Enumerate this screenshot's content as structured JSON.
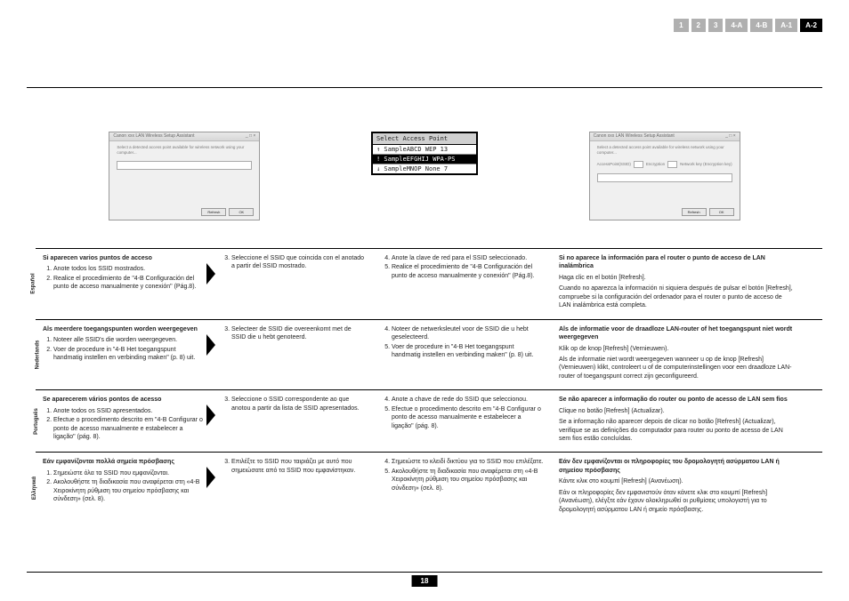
{
  "tabs": [
    "1",
    "2",
    "3",
    "4-A",
    "4-B",
    "A-1",
    "A-2"
  ],
  "activeTab": 6,
  "pageNumber": "18",
  "dialog1": {
    "title": "Canon xxx LAN Wireless Setup Assistant",
    "text": "Select a detected access point available for wireless network using your computer...",
    "btn1": "Refresh",
    "btn2": "OK"
  },
  "apList": {
    "title": "Select Access Point",
    "rows": [
      {
        "sel": false,
        "txt": "↑  SampleABCD WEP 13"
      },
      {
        "sel": true,
        "txt": "!  SampleEFGHIJ WPA-PS"
      },
      {
        "sel": false,
        "txt": "↓  SampleMNOP None 7"
      }
    ]
  },
  "dialog2": {
    "title": "Canon xxx LAN Wireless Setup Assistant",
    "lbl1": "AccessPoint(SSID)",
    "lbl2": "Encryption",
    "lbl3": "Network key (Encryption key)",
    "btn1": "Refresh",
    "btn2": "OK"
  },
  "rows": [
    {
      "lang": "Español",
      "col1": {
        "h": "Si aparecen varios puntos de acceso",
        "items": [
          "Anote todos los SSID mostrados.",
          "Realice el procedimiento de \"4-B Configuración del punto de acceso manualmente y conexión\" (Pág.8)."
        ]
      },
      "col2": {
        "start": 3,
        "items": [
          "Seleccione el SSID que coincida con el anotado a partir del SSID mostrado."
        ]
      },
      "col3": {
        "start": 4,
        "items": [
          "Anote la clave de red para el SSID seleccionado.",
          "Realice el procedimiento de \"4-B Configuración del punto de acceso manualmente y conexión\" (Pág.8)."
        ]
      },
      "col4": {
        "h": "Si no aparece la información para el router o punto de acceso de LAN inalámbrica",
        "p1": "Haga clic en el botón [Refresh].",
        "p2": "Cuando no aparezca la información ni siquiera después de pulsar el botón [Refresh], compruebe si la configuración del ordenador para el router o punto de acceso de LAN inalámbrica está completa."
      }
    },
    {
      "lang": "Nederlands",
      "col1": {
        "h": "Als meerdere toegangspunten worden weergegeven",
        "items": [
          "Noteer alle SSID's die worden weergegeven.",
          "Voer de procedure in \"4-B Het toegangspunt handmatig instellen en verbinding maken\" (p. 8) uit."
        ]
      },
      "col2": {
        "start": 3,
        "items": [
          "Selecteer de SSID die overeenkomt met de SSID die u hebt genoteerd."
        ]
      },
      "col3": {
        "start": 4,
        "items": [
          "Noteer de netwerksleutel voor de SSID die u hebt geselecteerd.",
          "Voer de procedure in \"4-B Het toegangspunt handmatig instellen en verbinding maken\" (p. 8) uit."
        ]
      },
      "col4": {
        "h": "Als de informatie voor de draadloze LAN-router of het toegangspunt niet wordt weergegeven",
        "p1": "Klik op de knop [Refresh] (Vernieuwen).",
        "p2": "Als de informatie niet wordt weergegeven wanneer u op de knop [Refresh] (Vernieuwen) klikt, controleert u of de computerinstellingen voor een draadloze LAN-router of toegangspunt correct zijn geconfigureerd."
      }
    },
    {
      "lang": "Português",
      "col1": {
        "h": "Se aparecerem vários pontos de acesso",
        "items": [
          "Anote todos os SSID apresentados.",
          "Efectue o procedimento descrito em \"4-B Configurar o ponto de acesso manualmente e estabelecer a ligação\" (pág. 8)."
        ]
      },
      "col2": {
        "start": 3,
        "items": [
          "Seleccione o SSID correspondente ao que anotou a partir da lista de SSID apresentados."
        ]
      },
      "col3": {
        "start": 4,
        "items": [
          "Anote a chave de rede do SSID que seleccionou.",
          "Efectue o procedimento descrito em \"4-B Configurar o ponto de acesso manualmente e estabelecer a ligação\" (pág. 8)."
        ]
      },
      "col4": {
        "h": "Se não aparecer a informação do router ou ponto de acesso de LAN sem fios",
        "p1": "Clique no botão [Refresh] (Actualizar).",
        "p2": "Se a informação não aparecer depois de clicar no botão [Refresh] (Actualizar), verifique se as definições do computador para router ou ponto de acesso de LAN sem fios estão concluídas."
      }
    },
    {
      "lang": "Ελληνικά",
      "col1": {
        "h": "Εάν εμφανίζονται πολλά σημεία πρόσβασης",
        "items": [
          "Σημειώστε όλα τα SSID που εμφανίζονται.",
          "Ακολουθήστε τη διαδικασία που αναφέρεται στη «4-B Χειροκίνητη ρύθμιση του σημείου πρόσβασης και σύνδεση» (σελ. 8)."
        ]
      },
      "col2": {
        "start": 3,
        "items": [
          "Επιλέξτε το SSID που ταιριάζει με αυτό που σημειώσατε από τα SSID που εμφανίστηκαν."
        ]
      },
      "col3": {
        "start": 4,
        "items": [
          "Σημειώστε το κλειδί δικτύου για το SSID που επιλέξατε.",
          "Ακολουθήστε τη διαδικασία που αναφέρεται στη «4-B Χειροκίνητη ρύθμιση του σημείου πρόσβασης και σύνδεση» (σελ. 8)."
        ]
      },
      "col4": {
        "h": "Εάν δεν εμφανίζονται οι πληροφορίες του δρομολογητή ασύρματου LAN ή σημείου πρόσβασης",
        "p1": "Κάντε κλικ στο κουμπί [Refresh] (Ανανέωση).",
        "p2": "Εάν οι πληροφορίες δεν εμφανιστούν όταν κάνετε κλικ στο κουμπί [Refresh] (Ανανέωση), ελέγξτε εάν έχουν ολοκληρωθεί οι ρυθμίσεις υπολογιστή για το δρομολογητή ασύρματου LAN ή σημείο πρόσβασης."
      }
    }
  ]
}
